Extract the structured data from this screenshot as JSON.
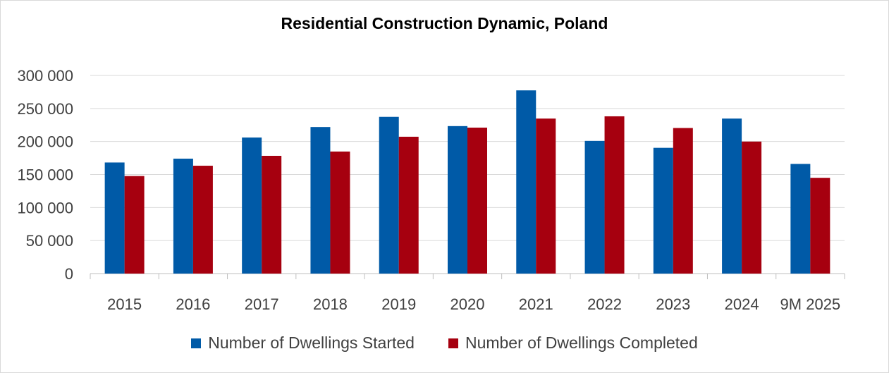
{
  "chart_data": {
    "type": "bar",
    "title": "Residential Construction Dynamic, Poland",
    "categories": [
      "2015",
      "2016",
      "2017",
      "2018",
      "2019",
      "2020",
      "2021",
      "2022",
      "2023",
      "2024",
      "9M 2025"
    ],
    "series": [
      {
        "name": "Number of Dwellings Started",
        "color": "#005AA7",
        "values": [
          168200,
          174000,
          206000,
          221900,
          237300,
          223300,
          277400,
          200900,
          190400,
          234700,
          166000
        ]
      },
      {
        "name": "Number of Dwellings Completed",
        "color": "#A6000F",
        "values": [
          147700,
          163300,
          178300,
          184800,
          207200,
          221000,
          234700,
          238100,
          220400,
          199900,
          145000
        ]
      }
    ],
    "ylim": [
      0,
      300000
    ],
    "yticks": [
      0,
      50000,
      100000,
      150000,
      200000,
      250000,
      300000
    ],
    "ytick_labels": [
      "0",
      "50 000",
      "100 000",
      "150 000",
      "200 000",
      "250 000",
      "300 000"
    ],
    "grid": true,
    "legend": "bottom",
    "xlabel": "",
    "ylabel": ""
  }
}
